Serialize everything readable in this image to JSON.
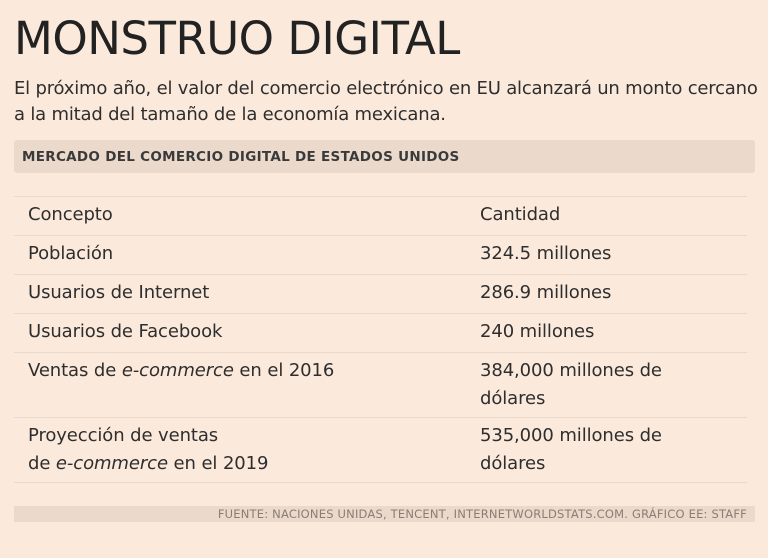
{
  "header": {
    "title": "MONSTRUO DIGITAL",
    "subtitle": "El próximo año, el valor del comercio electrónico en EU alcanzará un monto cercano a la mitad del tamaño de la economía mexicana."
  },
  "section": {
    "title": "MERCADO DEL COMERCIO DIGITAL DE ESTADOS UNIDOS"
  },
  "table": {
    "headers": [
      "Concepto",
      "Cantidad"
    ],
    "rows": [
      {
        "concept": "Población",
        "value": "324.5 millones"
      },
      {
        "concept": "Usuarios de Internet",
        "value": "286.9 millones"
      },
      {
        "concept": "Usuarios de Facebook",
        "value": "240 millones"
      },
      {
        "concept_pre": "Ventas de ",
        "concept_em": "e-commerce",
        "concept_post": " en el 2016",
        "value": "384,000 millones de dólares"
      },
      {
        "concept_line1": "Proyección de ventas",
        "concept_pre": "de ",
        "concept_em": "e-commerce",
        "concept_post": " en el 2019",
        "value": "535,000 millones de dólares"
      }
    ]
  },
  "footer": {
    "source": "FUENTE: NACIONES UNIDAS, TENCENT, INTERNETWORLDSTATS.COM. GRÁFICO EE: STAFF"
  }
}
